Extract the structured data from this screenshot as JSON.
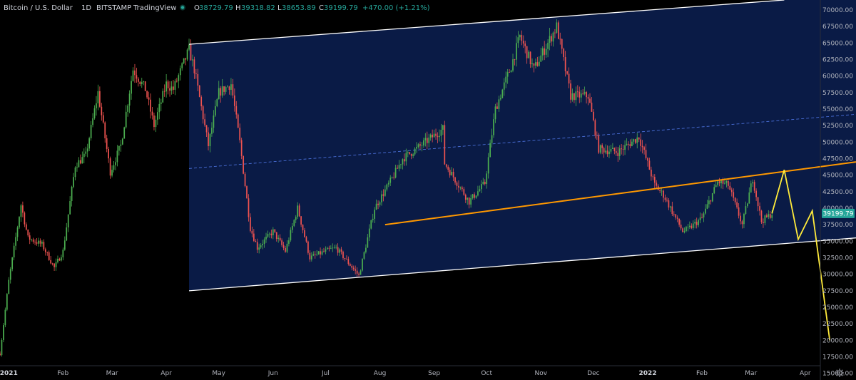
{
  "header": {
    "symbol": "Bitcoin / U.S. Dollar",
    "interval": "1D",
    "exchange": "BITSTAMP",
    "source": "TradingView",
    "open_label": "O",
    "open": "38729.79",
    "high_label": "H",
    "high": "39318.82",
    "low_label": "L",
    "low": "38653.89",
    "close_label": "C",
    "close": "39199.79",
    "change": "+470.00 (+1.21%)",
    "status_color": "#26a69a",
    "value_color": "#26a69a"
  },
  "colors": {
    "background": "#000000",
    "channel_fill": "#0b1c4a",
    "up": "#4caf50",
    "down": "#ef5350",
    "channel_line": "#ffffff",
    "midline": "#4a6fd8",
    "trend_line": "#ff9800",
    "projection": "#ffeb3b",
    "price_label_bg": "#26a69a"
  },
  "price_label": "39199.79",
  "settings_icon": "gear-icon",
  "chart_data": {
    "type": "candlestick",
    "title": "Bitcoin / U.S. Dollar · 1D · BITSTAMP",
    "x_range": [
      "2020-12-27",
      "2022-04-30"
    ],
    "ylim": [
      14000,
      71500
    ],
    "y_ticks": [
      "70000.00",
      "67500.00",
      "65000.00",
      "62500.00",
      "60000.00",
      "57500.00",
      "55000.00",
      "52500.00",
      "50000.00",
      "47500.00",
      "45000.00",
      "42500.00",
      "40000.00",
      "37500.00",
      "35000.00",
      "32500.00",
      "30000.00",
      "27500.00",
      "25000.00",
      "22500.00",
      "20000.00",
      "17500.00",
      "15000.00"
    ],
    "x_ticks": [
      {
        "label": "2021",
        "date": "2021-01-01",
        "bold": true
      },
      {
        "label": "Feb",
        "date": "2021-02-01"
      },
      {
        "label": "Mar",
        "date": "2021-03-01"
      },
      {
        "label": "Apr",
        "date": "2021-04-01"
      },
      {
        "label": "May",
        "date": "2021-05-01"
      },
      {
        "label": "Jun",
        "date": "2021-06-01"
      },
      {
        "label": "Jul",
        "date": "2021-07-01"
      },
      {
        "label": "Aug",
        "date": "2021-08-01"
      },
      {
        "label": "Sep",
        "date": "2021-09-01"
      },
      {
        "label": "Oct",
        "date": "2021-10-01"
      },
      {
        "label": "Nov",
        "date": "2021-11-01"
      },
      {
        "label": "Dec",
        "date": "2021-12-01"
      },
      {
        "label": "2022",
        "date": "2022-01-01",
        "bold": true
      },
      {
        "label": "Feb",
        "date": "2022-02-01"
      },
      {
        "label": "Mar",
        "date": "2022-03-01"
      },
      {
        "label": "Apr",
        "date": "2022-04-01"
      }
    ],
    "price_path": [
      [
        "2020-12-27",
        18000
      ],
      [
        "2021-01-01",
        29000
      ],
      [
        "2021-01-08",
        40500
      ],
      [
        "2021-01-12",
        35500
      ],
      [
        "2021-01-20",
        34500
      ],
      [
        "2021-01-27",
        31000
      ],
      [
        "2021-02-01",
        33500
      ],
      [
        "2021-02-08",
        46500
      ],
      [
        "2021-02-14",
        48000
      ],
      [
        "2021-02-21",
        57500
      ],
      [
        "2021-02-28",
        45500
      ],
      [
        "2021-03-06",
        49500
      ],
      [
        "2021-03-13",
        61000
      ],
      [
        "2021-03-20",
        58000
      ],
      [
        "2021-03-25",
        52500
      ],
      [
        "2021-04-01",
        58800
      ],
      [
        "2021-04-05",
        58000
      ],
      [
        "2021-04-14",
        64000
      ],
      [
        "2021-04-17",
        61000
      ],
      [
        "2021-04-25",
        49500
      ],
      [
        "2021-05-01",
        57500
      ],
      [
        "2021-05-08",
        58800
      ],
      [
        "2021-05-13",
        50000
      ],
      [
        "2021-05-19",
        37000
      ],
      [
        "2021-05-23",
        34000
      ],
      [
        "2021-06-01",
        36500
      ],
      [
        "2021-06-08",
        33500
      ],
      [
        "2021-06-15",
        40000
      ],
      [
        "2021-06-22",
        32500
      ],
      [
        "2021-07-01",
        33500
      ],
      [
        "2021-07-07",
        34000
      ],
      [
        "2021-07-20",
        29800
      ],
      [
        "2021-07-29",
        40000
      ],
      [
        "2021-08-08",
        44500
      ],
      [
        "2021-08-14",
        47500
      ],
      [
        "2021-08-22",
        49000
      ],
      [
        "2021-09-06",
        52000
      ],
      [
        "2021-09-07",
        46800
      ],
      [
        "2021-09-21",
        41000
      ],
      [
        "2021-09-30",
        43800
      ],
      [
        "2021-10-06",
        55000
      ],
      [
        "2021-10-15",
        61500
      ],
      [
        "2021-10-20",
        66000
      ],
      [
        "2021-10-28",
        61000
      ],
      [
        "2021-11-10",
        67500
      ],
      [
        "2021-11-18",
        57000
      ],
      [
        "2021-11-28",
        57000
      ],
      [
        "2021-12-04",
        49000
      ],
      [
        "2021-12-15",
        48500
      ],
      [
        "2021-12-27",
        50800
      ],
      [
        "2022-01-05",
        43500
      ],
      [
        "2022-01-10",
        42000
      ],
      [
        "2022-01-21",
        36500
      ],
      [
        "2022-01-24",
        36800
      ],
      [
        "2022-02-01",
        38500
      ],
      [
        "2022-02-10",
        44000
      ],
      [
        "2022-02-16",
        43500
      ],
      [
        "2022-02-24",
        37500
      ],
      [
        "2022-03-02",
        44500
      ],
      [
        "2022-03-07",
        38000
      ],
      [
        "2022-03-13",
        39200
      ]
    ],
    "annotations": {
      "channel_upper": [
        [
          "2021-04-14",
          64800
        ],
        [
          "2022-03-20",
          71500
        ]
      ],
      "channel_lower": [
        [
          "2021-04-14",
          27500
        ],
        [
          "2022-04-30",
          35500
        ]
      ],
      "channel_mid": [
        [
          "2021-04-14",
          46000
        ],
        [
          "2022-04-30",
          54200
        ]
      ],
      "orange_trendline": [
        [
          "2021-08-04",
          37500
        ],
        [
          "2022-04-30",
          47000
        ]
      ],
      "yellow_projection": [
        [
          "2022-03-13",
          39200
        ],
        [
          "2022-03-20",
          45800
        ],
        [
          "2022-03-28",
          35300
        ],
        [
          "2022-04-05",
          39600
        ],
        [
          "2022-04-15",
          20000
        ]
      ]
    }
  }
}
